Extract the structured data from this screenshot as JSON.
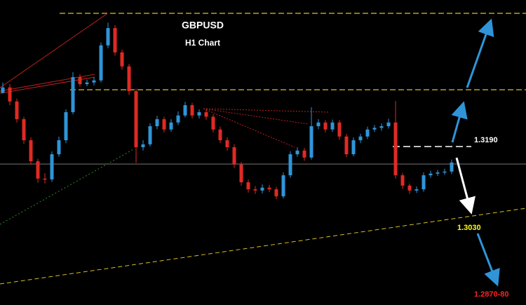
{
  "chart_data": {
    "type": "candlestick",
    "title": "GBPUSD",
    "subtitle": "H1 Chart",
    "open": [
      1.332,
      1.3333,
      1.3299,
      1.3256,
      1.3205,
      1.3154,
      1.3112,
      1.311,
      1.3171,
      1.3205,
      1.3273,
      1.3358,
      1.3341,
      1.3345,
      1.335,
      1.3435,
      1.3477,
      1.3418,
      1.3384,
      1.3324,
      1.3188,
      1.3195,
      1.3239,
      1.3256,
      1.3231,
      1.3248,
      1.3265,
      1.329,
      1.3265,
      1.3273,
      1.3262,
      1.3231,
      1.3205,
      1.3188,
      1.3146,
      1.3103,
      1.3086,
      1.3083,
      1.309,
      1.3086,
      1.3069,
      1.312,
      1.3171,
      1.318,
      1.3163,
      1.3239,
      1.3248,
      1.3231,
      1.3248,
      1.3214,
      1.3171,
      1.3205,
      1.3214,
      1.3231,
      1.3235,
      1.3239,
      1.3248,
      1.312,
      1.3095,
      1.3083,
      1.3086,
      1.312,
      1.3124,
      1.3127,
      1.3129
    ],
    "high": [
      1.3345,
      1.3341,
      1.3306,
      1.3262,
      1.3212,
      1.316,
      1.3125,
      1.3178,
      1.3214,
      1.328,
      1.337,
      1.3365,
      1.3352,
      1.3358,
      1.3442,
      1.349,
      1.3484,
      1.3425,
      1.339,
      1.333,
      1.3205,
      1.3246,
      1.3264,
      1.3262,
      1.3256,
      1.3275,
      1.3298,
      1.3296,
      1.328,
      1.328,
      1.3268,
      1.3238,
      1.3212,
      1.3195,
      1.3152,
      1.311,
      1.3094,
      1.3098,
      1.3097,
      1.3092,
      1.3127,
      1.3178,
      1.3188,
      1.3186,
      1.3285,
      1.3256,
      1.3254,
      1.3255,
      1.3254,
      1.322,
      1.3212,
      1.3221,
      1.3238,
      1.3242,
      1.3246,
      1.3257,
      1.33,
      1.3126,
      1.31,
      1.3093,
      1.3127,
      1.3131,
      1.3133,
      1.3136,
      1.3158
    ],
    "low": [
      1.3318,
      1.329,
      1.3248,
      1.3196,
      1.3146,
      1.3102,
      1.31,
      1.3104,
      1.3165,
      1.3198,
      1.3268,
      1.3335,
      1.3336,
      1.3338,
      1.3345,
      1.3428,
      1.341,
      1.3376,
      1.3315,
      1.315,
      1.318,
      1.319,
      1.3232,
      1.3224,
      1.3225,
      1.3242,
      1.326,
      1.3258,
      1.3258,
      1.3255,
      1.3224,
      1.3198,
      1.318,
      1.3138,
      1.3095,
      1.3078,
      1.3075,
      1.3076,
      1.3079,
      1.3062,
      1.3064,
      1.3114,
      1.3165,
      1.3155,
      1.3158,
      1.3232,
      1.3224,
      1.3225,
      1.3206,
      1.3164,
      1.3166,
      1.3198,
      1.3208,
      1.3225,
      1.3228,
      1.3233,
      1.3112,
      1.3087,
      1.3075,
      1.3077,
      1.308,
      1.3114,
      1.3118,
      1.3121,
      1.3123
    ],
    "close": [
      1.3333,
      1.3299,
      1.3256,
      1.3205,
      1.3154,
      1.3112,
      1.311,
      1.3171,
      1.3205,
      1.3273,
      1.3358,
      1.3341,
      1.3345,
      1.335,
      1.3435,
      1.3477,
      1.3418,
      1.3384,
      1.3324,
      1.3188,
      1.3195,
      1.3239,
      1.3256,
      1.3231,
      1.3248,
      1.3265,
      1.329,
      1.3265,
      1.3273,
      1.3262,
      1.3231,
      1.3205,
      1.3188,
      1.3146,
      1.3103,
      1.3086,
      1.3083,
      1.309,
      1.3086,
      1.3069,
      1.312,
      1.3171,
      1.318,
      1.3163,
      1.3239,
      1.3248,
      1.3231,
      1.3248,
      1.3214,
      1.3171,
      1.3205,
      1.3214,
      1.3231,
      1.3235,
      1.3239,
      1.3248,
      1.312,
      1.3095,
      1.3083,
      1.3086,
      1.312,
      1.3124,
      1.3127,
      1.3129,
      1.3151
    ],
    "up_color": "#2f95d8",
    "down_color": "#e02a24",
    "ylim": [
      1.2814,
      1.3545
    ],
    "annotations": [
      {
        "text": "1.3190",
        "color": "#ffffff"
      },
      {
        "text": "1.3030",
        "color": "#ffff00"
      },
      {
        "text": "1.2870-80",
        "color": "#ff2020"
      }
    ]
  }
}
